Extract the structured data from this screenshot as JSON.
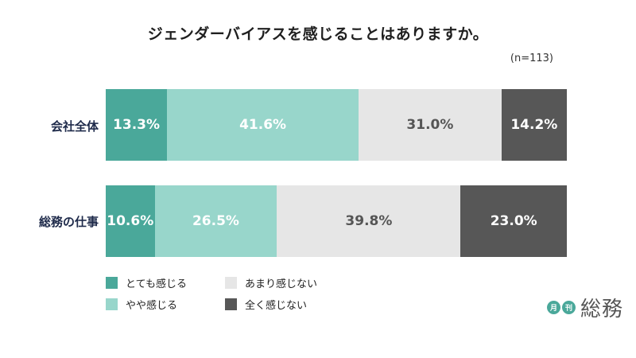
{
  "chart_data": {
    "type": "bar",
    "stacked": true,
    "orientation": "horizontal",
    "title": "ジェンダーバイアスを感じることはありますか。",
    "note": "(n=113)",
    "categories": [
      "会社全体",
      "総務の仕事"
    ],
    "series": [
      {
        "name": "とても感じる",
        "color": "#4aa89a",
        "text_color": "#ffffff",
        "values": [
          13.3,
          10.6
        ]
      },
      {
        "name": "やや感じる",
        "color": "#98d6cb",
        "text_color": "#ffffff",
        "values": [
          41.6,
          26.5
        ]
      },
      {
        "name": "あまり感じない",
        "color": "#e6e6e6",
        "text_color": "#555555",
        "values": [
          31.0,
          39.8
        ]
      },
      {
        "name": "全く感じない",
        "color": "#575757",
        "text_color": "#ffffff",
        "values": [
          14.2,
          23.0
        ]
      }
    ],
    "value_format": "%",
    "xlim": [
      0,
      100
    ]
  },
  "logo": {
    "badge1": "月",
    "badge2": "刊",
    "text": "総務"
  }
}
